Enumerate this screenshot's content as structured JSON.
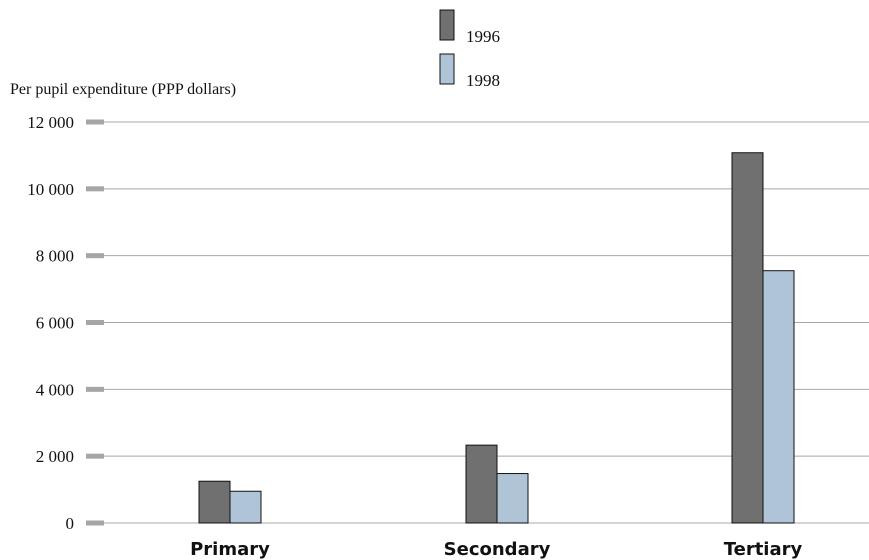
{
  "chart_data": {
    "type": "bar",
    "ylabel": "Per pupil expenditure (PPP dollars)",
    "categories": [
      "Primary",
      "Secondary",
      "Tertiary"
    ],
    "series": [
      {
        "name": "1996",
        "values": [
          1250,
          2330,
          11080
        ],
        "color": "#707070"
      },
      {
        "name": "1998",
        "values": [
          950,
          1480,
          7550
        ],
        "color": "#b0c4d8"
      }
    ],
    "ylim": [
      0,
      12000
    ],
    "yticks": [
      0,
      2000,
      4000,
      6000,
      8000,
      10000,
      12000
    ],
    "ytick_labels": [
      "0",
      "2 000",
      "4 000",
      "6 000",
      "8 000",
      "10 000",
      "12 000"
    ],
    "grid": true,
    "legend_position": "top-center"
  }
}
